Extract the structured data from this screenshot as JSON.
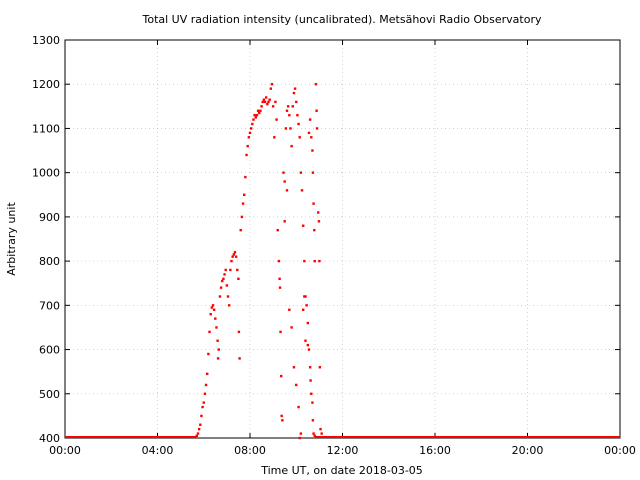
{
  "chart_data": {
    "type": "scatter",
    "title": "Total UV radiation intensity (uncalibrated). Metsähovi Radio Observatory",
    "xlabel": "Time UT, on date 2018-03-05",
    "ylabel": "Arbitrary unit",
    "xlim_hours": [
      0,
      24
    ],
    "ylim": [
      400,
      1300
    ],
    "x_ticks": [
      {
        "hour": 0,
        "label": "00:00"
      },
      {
        "hour": 4,
        "label": "04:00"
      },
      {
        "hour": 8,
        "label": "08:00"
      },
      {
        "hour": 12,
        "label": "12:00"
      },
      {
        "hour": 16,
        "label": "16:00"
      },
      {
        "hour": 20,
        "label": "20:00"
      },
      {
        "hour": 24,
        "label": "00:00"
      }
    ],
    "y_ticks": [
      400,
      500,
      600,
      700,
      800,
      900,
      1000,
      1100,
      1200,
      1300
    ],
    "grid": true,
    "point_color": "#ff0000",
    "baseline": {
      "value": 400,
      "from_hour": 0,
      "to_hour": 5.7,
      "resume_hour": 10.8,
      "end_hour": 24
    },
    "points": [
      [
        5.7,
        405
      ],
      [
        5.75,
        410
      ],
      [
        5.8,
        420
      ],
      [
        5.85,
        430
      ],
      [
        5.9,
        450
      ],
      [
        5.95,
        470
      ],
      [
        6.0,
        480
      ],
      [
        6.05,
        500
      ],
      [
        6.1,
        520
      ],
      [
        6.15,
        545
      ],
      [
        6.2,
        590
      ],
      [
        6.25,
        640
      ],
      [
        6.3,
        680
      ],
      [
        6.35,
        695
      ],
      [
        6.4,
        700
      ],
      [
        6.45,
        690
      ],
      [
        6.5,
        670
      ],
      [
        6.55,
        650
      ],
      [
        6.6,
        620
      ],
      [
        6.62,
        580
      ],
      [
        6.65,
        600
      ],
      [
        6.7,
        720
      ],
      [
        6.75,
        740
      ],
      [
        6.8,
        755
      ],
      [
        6.85,
        760
      ],
      [
        6.9,
        770
      ],
      [
        6.95,
        780
      ],
      [
        7.0,
        745
      ],
      [
        7.05,
        720
      ],
      [
        7.1,
        700
      ],
      [
        7.15,
        780
      ],
      [
        7.2,
        800
      ],
      [
        7.25,
        810
      ],
      [
        7.3,
        815
      ],
      [
        7.35,
        820
      ],
      [
        7.4,
        810
      ],
      [
        7.45,
        780
      ],
      [
        7.5,
        760
      ],
      [
        7.52,
        640
      ],
      [
        7.55,
        580
      ],
      [
        7.6,
        870
      ],
      [
        7.65,
        900
      ],
      [
        7.7,
        930
      ],
      [
        7.75,
        950
      ],
      [
        7.8,
        990
      ],
      [
        7.85,
        1040
      ],
      [
        7.9,
        1060
      ],
      [
        7.95,
        1080
      ],
      [
        8.0,
        1090
      ],
      [
        8.05,
        1100
      ],
      [
        8.1,
        1110
      ],
      [
        8.15,
        1120
      ],
      [
        8.2,
        1130
      ],
      [
        8.25,
        1125
      ],
      [
        8.3,
        1130
      ],
      [
        8.35,
        1140
      ],
      [
        8.4,
        1135
      ],
      [
        8.45,
        1140
      ],
      [
        8.5,
        1150
      ],
      [
        8.55,
        1160
      ],
      [
        8.6,
        1165
      ],
      [
        8.65,
        1160
      ],
      [
        8.7,
        1170
      ],
      [
        8.75,
        1155
      ],
      [
        8.8,
        1160
      ],
      [
        8.85,
        1165
      ],
      [
        8.9,
        1190
      ],
      [
        8.95,
        1200
      ],
      [
        9.0,
        1150
      ],
      [
        9.05,
        1080
      ],
      [
        9.1,
        1160
      ],
      [
        9.15,
        1120
      ],
      [
        9.2,
        870
      ],
      [
        9.25,
        800
      ],
      [
        9.28,
        760
      ],
      [
        9.3,
        740
      ],
      [
        9.32,
        640
      ],
      [
        9.35,
        540
      ],
      [
        9.37,
        450
      ],
      [
        9.4,
        440
      ],
      [
        9.45,
        1000
      ],
      [
        9.5,
        980
      ],
      [
        9.55,
        1100
      ],
      [
        9.6,
        1140
      ],
      [
        9.65,
        1150
      ],
      [
        9.7,
        1130
      ],
      [
        9.75,
        1100
      ],
      [
        9.8,
        1060
      ],
      [
        9.85,
        1150
      ],
      [
        9.9,
        1180
      ],
      [
        9.95,
        1190
      ],
      [
        10.0,
        1160
      ],
      [
        10.05,
        1130
      ],
      [
        10.1,
        1110
      ],
      [
        10.15,
        1080
      ],
      [
        10.2,
        1000
      ],
      [
        10.25,
        960
      ],
      [
        10.3,
        880
      ],
      [
        10.35,
        800
      ],
      [
        10.4,
        720
      ],
      [
        10.45,
        700
      ],
      [
        10.5,
        660
      ],
      [
        10.55,
        600
      ],
      [
        10.6,
        560
      ],
      [
        10.62,
        530
      ],
      [
        10.65,
        500
      ],
      [
        10.7,
        480
      ],
      [
        10.72,
        440
      ],
      [
        10.75,
        410
      ],
      [
        10.8,
        405
      ],
      [
        9.5,
        890
      ],
      [
        9.6,
        960
      ],
      [
        9.7,
        690
      ],
      [
        9.8,
        650
      ],
      [
        9.9,
        560
      ],
      [
        10.0,
        520
      ],
      [
        10.1,
        470
      ],
      [
        10.15,
        400
      ],
      [
        10.2,
        410
      ],
      [
        10.3,
        690
      ],
      [
        10.35,
        720
      ],
      [
        10.4,
        620
      ],
      [
        10.5,
        610
      ],
      [
        10.55,
        1090
      ],
      [
        10.6,
        1120
      ],
      [
        10.65,
        1080
      ],
      [
        10.7,
        1050
      ],
      [
        10.72,
        1000
      ],
      [
        10.75,
        930
      ],
      [
        10.78,
        870
      ],
      [
        10.8,
        800
      ],
      [
        10.85,
        1200
      ],
      [
        10.88,
        1140
      ],
      [
        10.9,
        1100
      ],
      [
        10.95,
        910
      ],
      [
        10.98,
        890
      ],
      [
        11.0,
        800
      ],
      [
        11.02,
        560
      ],
      [
        11.05,
        420
      ],
      [
        11.1,
        410
      ]
    ]
  }
}
